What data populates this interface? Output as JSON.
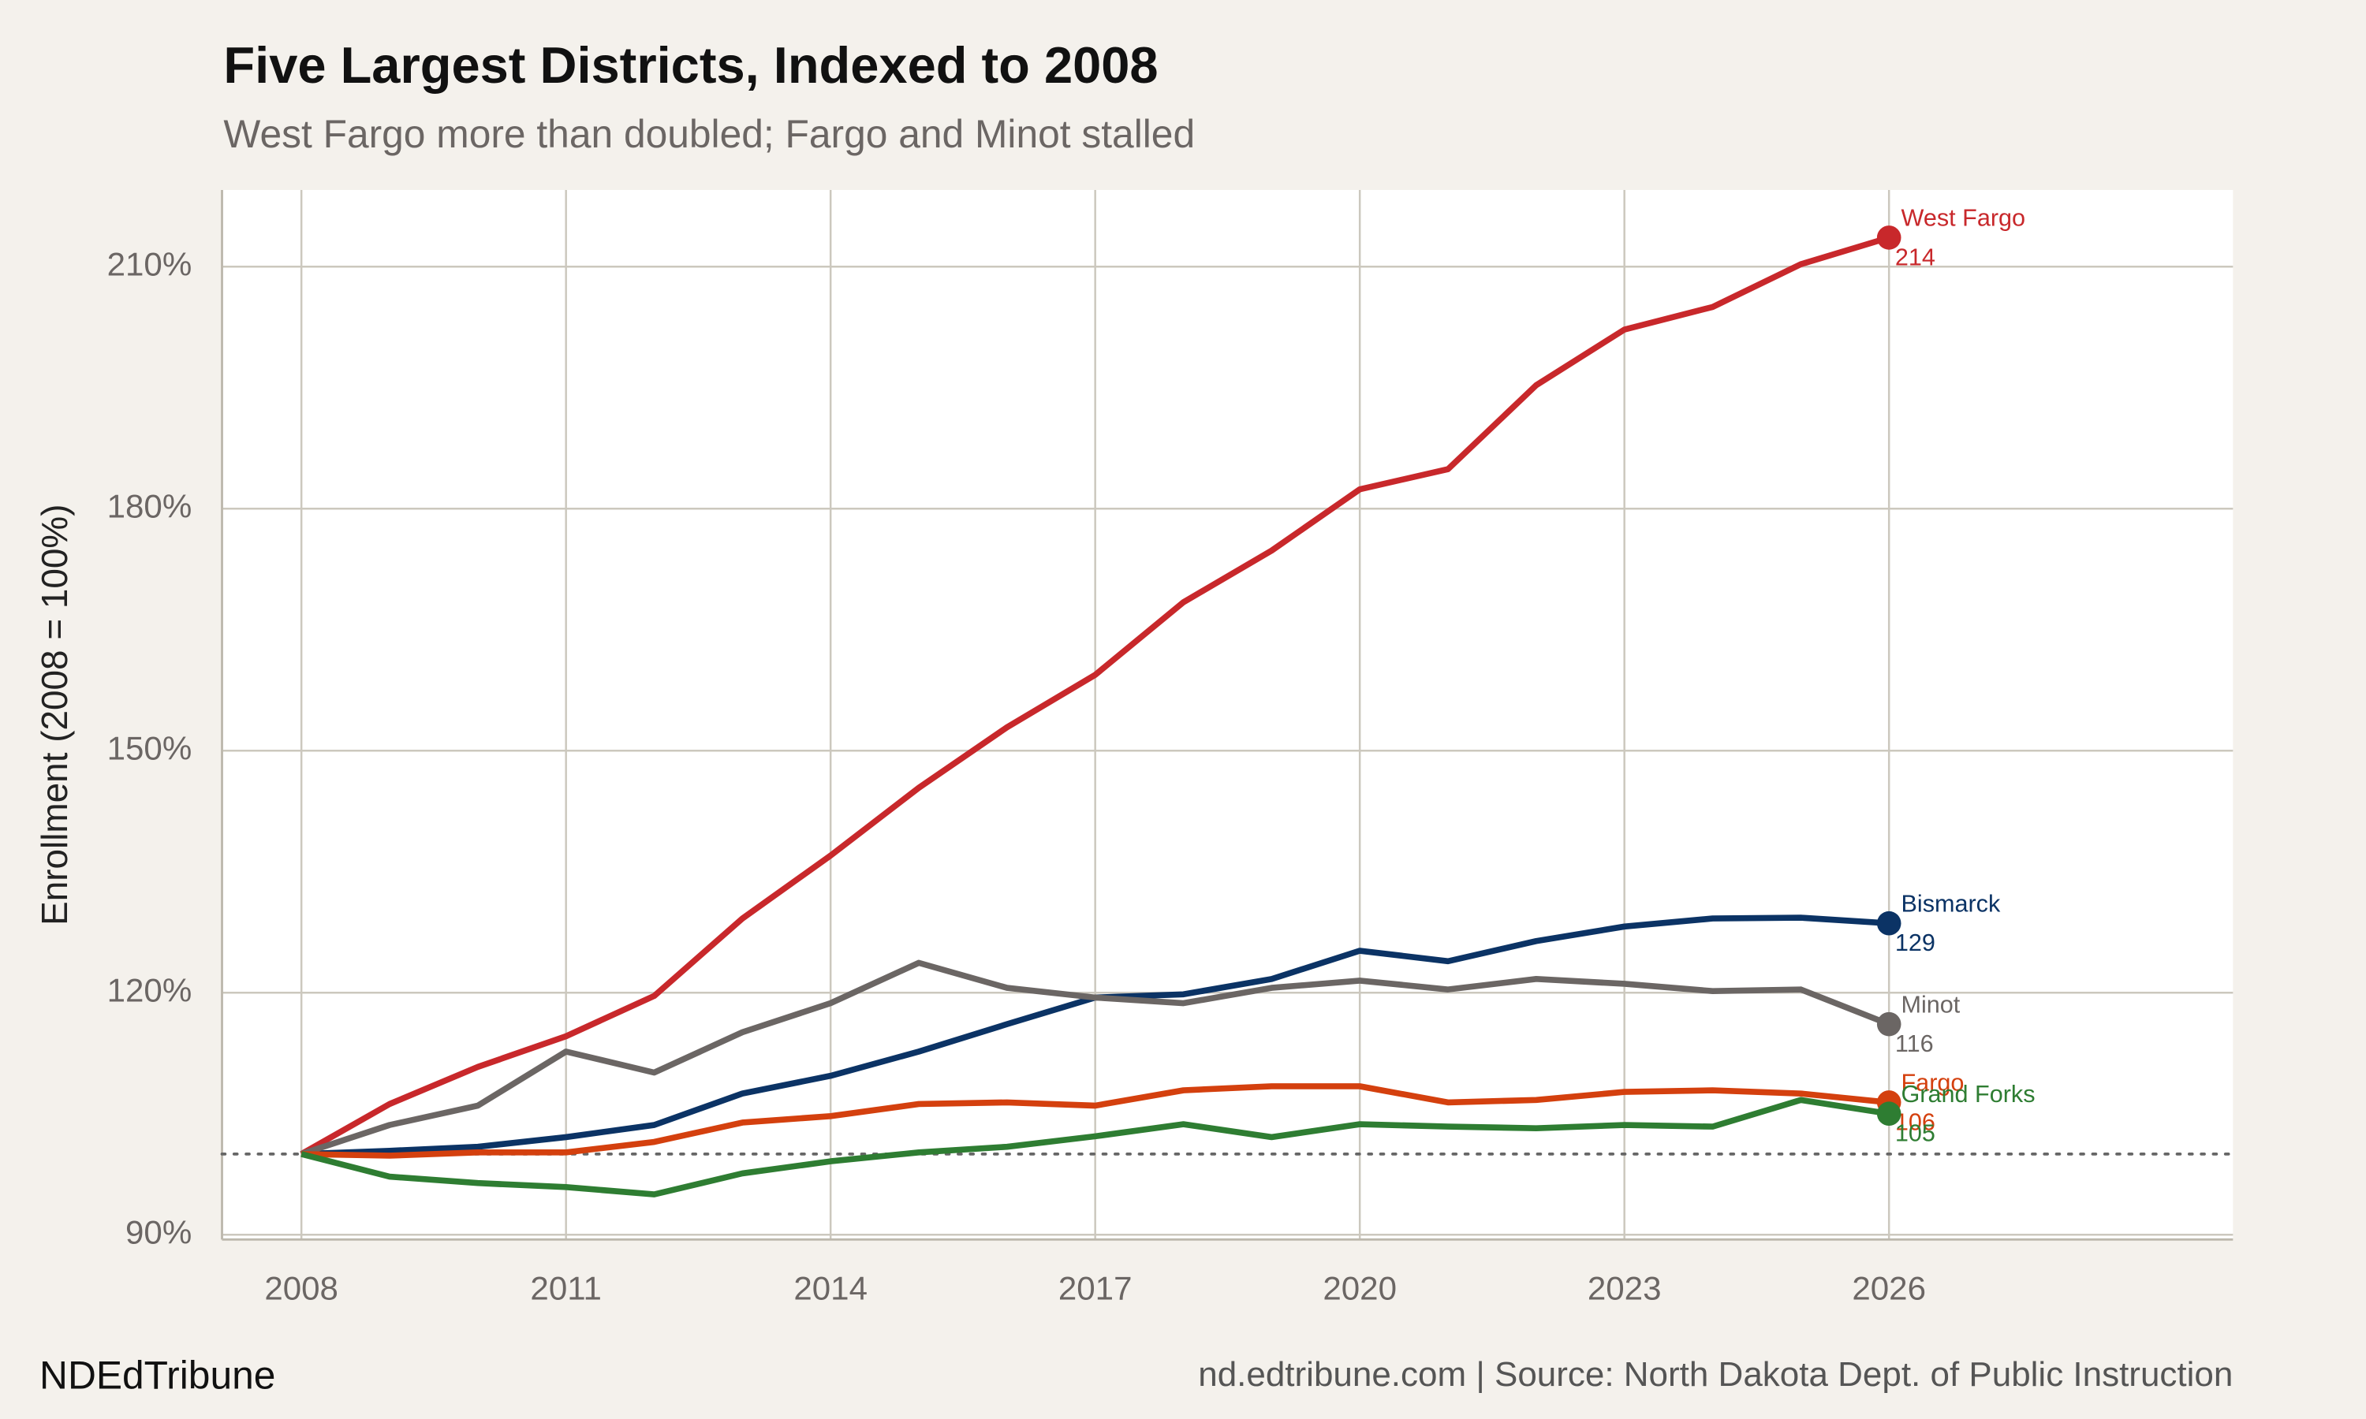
{
  "chart_data": {
    "type": "line",
    "title": "Five Largest Districts, Indexed to 2008",
    "subtitle": "West Fargo more than doubled; Fargo and Minot stalled",
    "y_label": "Enrollment (2008 = 100%)",
    "x": [
      2008,
      2009,
      2010,
      2011,
      2012,
      2013,
      2014,
      2015,
      2016,
      2017,
      2018,
      2019,
      2020,
      2021,
      2022,
      2023,
      2024,
      2025,
      2026
    ],
    "series": [
      {
        "name": "West Fargo",
        "color": "#c8282b",
        "values": [
          100,
          106.2,
          110.8,
          114.6,
          119.6,
          129.2,
          137,
          145.4,
          152.9,
          159.4,
          168.4,
          174.8,
          182.4,
          184.9,
          195.3,
          202.2,
          205,
          210.3,
          213.6
        ],
        "end_label": "214"
      },
      {
        "name": "Bismarck",
        "color": "#0b3365",
        "values": [
          100,
          100.4,
          100.9,
          102.1,
          103.6,
          107.5,
          109.7,
          112.7,
          116.1,
          119.4,
          119.8,
          121.7,
          125.2,
          123.9,
          126.4,
          128.2,
          129.2,
          129.3,
          128.6
        ],
        "end_label": "129"
      },
      {
        "name": "Minot",
        "color": "#6b6664",
        "values": [
          100,
          103.6,
          106,
          112.7,
          110.1,
          115.1,
          118.7,
          123.7,
          120.6,
          119.4,
          118.7,
          120.6,
          121.5,
          120.4,
          121.7,
          121.1,
          120.2,
          120.4,
          116.1
        ],
        "end_label": "116"
      },
      {
        "name": "Fargo",
        "color": "#d4400e",
        "values": [
          100,
          99.8,
          100.2,
          100.2,
          101.5,
          103.9,
          104.7,
          106.2,
          106.4,
          106,
          107.9,
          108.4,
          108.4,
          106.4,
          106.7,
          107.7,
          107.9,
          107.5,
          106.4
        ],
        "end_label": "106"
      },
      {
        "name": "Grand Forks",
        "color": "#2e7d32",
        "values": [
          100,
          97.2,
          96.4,
          95.9,
          95,
          97.6,
          99.1,
          100.2,
          100.9,
          102.2,
          103.7,
          102.1,
          103.7,
          103.4,
          103.2,
          103.6,
          103.4,
          106.7,
          105
        ],
        "end_label": "105"
      }
    ],
    "xlim": [
      2007.1,
      2029.9
    ],
    "xticks": [
      2008,
      2011,
      2014,
      2017,
      2020,
      2023,
      2026
    ],
    "ylim": [
      89.4,
      219.5
    ],
    "yticks": [
      {
        "value": 90,
        "label": "90%"
      },
      {
        "value": 120,
        "label": "120%"
      },
      {
        "value": 150,
        "label": "150%"
      },
      {
        "value": 180,
        "label": "180%"
      },
      {
        "value": 210,
        "label": "210%"
      }
    ],
    "reference_line": 100,
    "grid": true,
    "brand": "NDEdTribune",
    "source": "nd.edtribune.com | Source: North Dakota Dept. of Public Instruction"
  }
}
